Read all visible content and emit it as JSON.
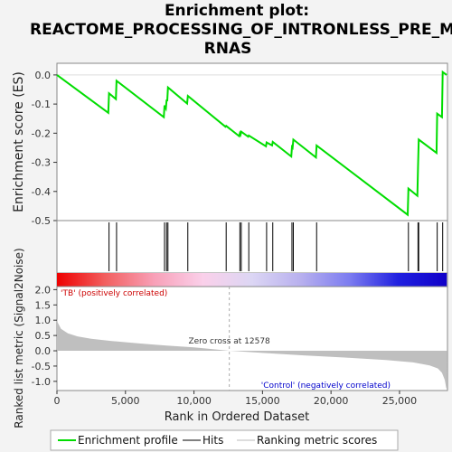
{
  "chart_data": {
    "type": "line",
    "title_lines": [
      "Enrichment plot:",
      "REACTOME_PROCESSING_OF_INTRONLESS_PRE_M",
      "RNAS"
    ],
    "xlabel": "Rank in Ordered Dataset",
    "ylabel_top": "Enrichment score (ES)",
    "ylabel_bottom": "Ranked list metric (Signal2Noise)",
    "xlim": [
      0,
      28500
    ],
    "x_ticks": [
      0,
      5000,
      10000,
      15000,
      20000,
      25000
    ],
    "x_tick_labels": [
      "0",
      "5,000",
      "10,000",
      "15,000",
      "20,000",
      "25,000"
    ],
    "es_ylim": [
      -0.5,
      0.04
    ],
    "es_y_ticks": [
      0.0,
      -0.1,
      -0.2,
      -0.3,
      -0.4,
      -0.5
    ],
    "es_y_tick_labels": [
      "0.0",
      "-0.1",
      "-0.2",
      "-0.3",
      "-0.4",
      "-0.5"
    ],
    "metric_ylim": [
      -1.3,
      2.1
    ],
    "metric_y_ticks": [
      2.0,
      1.5,
      1.0,
      0.5,
      0.0,
      -0.5,
      -1.0
    ],
    "metric_y_tick_labels": [
      "2.0",
      "1.5",
      "1.0",
      "0.5",
      "0.0",
      "-0.5",
      "-1.0"
    ],
    "hits": [
      3800,
      4350,
      7850,
      8000,
      8100,
      9550,
      12350,
      13350,
      13450,
      14000,
      15300,
      15750,
      17150,
      17250,
      18950,
      25650,
      26350,
      26400,
      27750,
      28150
    ],
    "es_curve": [
      [
        0,
        0.0
      ],
      [
        3750,
        -0.13
      ],
      [
        3800,
        -0.063
      ],
      [
        4300,
        -0.083
      ],
      [
        4350,
        -0.02
      ],
      [
        7800,
        -0.145
      ],
      [
        7850,
        -0.105
      ],
      [
        7950,
        -0.115
      ],
      [
        8000,
        -0.085
      ],
      [
        8050,
        -0.09
      ],
      [
        8100,
        -0.043
      ],
      [
        9500,
        -0.098
      ],
      [
        9550,
        -0.072
      ],
      [
        12300,
        -0.178
      ],
      [
        12350,
        -0.175
      ],
      [
        13300,
        -0.21
      ],
      [
        13350,
        -0.2
      ],
      [
        13400,
        -0.205
      ],
      [
        13450,
        -0.195
      ],
      [
        13950,
        -0.212
      ],
      [
        14000,
        -0.208
      ],
      [
        15250,
        -0.245
      ],
      [
        15300,
        -0.232
      ],
      [
        15700,
        -0.242
      ],
      [
        15750,
        -0.23
      ],
      [
        17100,
        -0.28
      ],
      [
        17150,
        -0.247
      ],
      [
        17200,
        -0.25
      ],
      [
        17250,
        -0.222
      ],
      [
        18900,
        -0.283
      ],
      [
        18950,
        -0.242
      ],
      [
        25600,
        -0.48
      ],
      [
        25650,
        -0.39
      ],
      [
        26300,
        -0.415
      ],
      [
        26350,
        -0.318
      ],
      [
        26400,
        -0.222
      ],
      [
        27700,
        -0.268
      ],
      [
        27750,
        -0.133
      ],
      [
        28100,
        -0.145
      ],
      [
        28150,
        0.01
      ],
      [
        28450,
        0.0
      ]
    ],
    "metric_curve": [
      [
        0,
        1.05
      ],
      [
        60,
        0.92
      ],
      [
        300,
        0.72
      ],
      [
        800,
        0.57
      ],
      [
        1500,
        0.47
      ],
      [
        2500,
        0.39
      ],
      [
        4000,
        0.32
      ],
      [
        6000,
        0.24
      ],
      [
        8000,
        0.17
      ],
      [
        10000,
        0.11
      ],
      [
        12578,
        0.0
      ],
      [
        15000,
        -0.07
      ],
      [
        18000,
        -0.15
      ],
      [
        21000,
        -0.22
      ],
      [
        24000,
        -0.3
      ],
      [
        26000,
        -0.38
      ],
      [
        27200,
        -0.48
      ],
      [
        27800,
        -0.58
      ],
      [
        28100,
        -0.72
      ],
      [
        28300,
        -0.95
      ],
      [
        28400,
        -1.2
      ],
      [
        28450,
        -1.25
      ]
    ],
    "zero_cross_rank": 12578,
    "zero_cross_label": "Zero cross at 12578",
    "positive_label": "'TB' (positively correlated)",
    "negative_label": "'Control' (negatively correlated)",
    "legend": [
      {
        "label": "Enrichment profile",
        "color": "#00dd00"
      },
      {
        "label": "Hits",
        "color": "#000000"
      },
      {
        "label": "Ranking metric scores",
        "color": "#bbbbbb"
      }
    ],
    "colors": {
      "es_line": "#00dd00",
      "metric_fill": "#bfbfbf",
      "positive_text": "#cc0000",
      "negative_text": "#0000cc",
      "band_stops": [
        "#ee0000",
        "#f26060",
        "#f8a0b8",
        "#fad0ea",
        "#dcd6f4",
        "#b8b0ee",
        "#7c7cf0",
        "#2020e0",
        "#1000c8"
      ]
    }
  }
}
